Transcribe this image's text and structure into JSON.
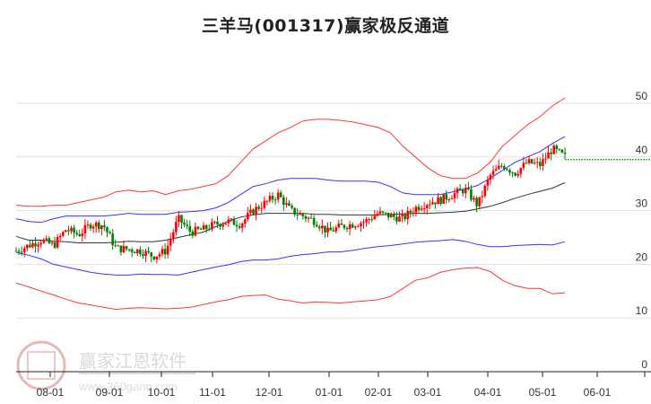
{
  "title": "三羊马(001317)赢家极反通道",
  "watermark": {
    "brand": "赢家江恩软件",
    "url": "www.360gann.com",
    "seal": [
      "江",
      "赢",
      "恩",
      "家"
    ]
  },
  "colors": {
    "up": "#ff0000",
    "down": "#008000",
    "outer_band": "#ff3333",
    "inner_band": "#3333ff",
    "mid_line": "#333333",
    "last_price_line": "#008000",
    "grid": "#e0e0e0"
  },
  "chart_data": {
    "type": "candlestick",
    "title": "三羊马(001317)赢家极反通道",
    "xlabel": "",
    "ylabel": "",
    "ylim": [
      0,
      52
    ],
    "y_ticks": [
      0,
      10,
      20,
      30,
      40,
      50
    ],
    "x_ticks": [
      "08-01",
      "09-01",
      "10-01",
      "11-01",
      "12-01",
      "01-01",
      "02-01",
      "03-01",
      "04-01",
      "05-01",
      "06-01"
    ],
    "grid": true,
    "last_price": 39.5,
    "series": [
      {
        "name": "outer_upper",
        "color": "#ff3333",
        "values": [
          31,
          30.8,
          30.8,
          31,
          31,
          31.5,
          32,
          32.5,
          33.5,
          33.8,
          33.5,
          33.7,
          33,
          33.7,
          34,
          34.5,
          35,
          36.5,
          39,
          41.5,
          43,
          44.5,
          45.5,
          46.7,
          47,
          47,
          46.8,
          46.5,
          46,
          45.5,
          44.5,
          42,
          40,
          38,
          36.5,
          36,
          36,
          37,
          39,
          42,
          44,
          46,
          47.5,
          49.5,
          51
        ]
      },
      {
        "name": "inner_upper",
        "color": "#3333ff",
        "values": [
          28.5,
          28,
          27.8,
          28.5,
          29,
          29,
          29,
          29,
          29.2,
          29.5,
          29.3,
          29.3,
          29.3,
          29.7,
          29.8,
          30,
          30.5,
          31.5,
          33,
          34.5,
          35,
          35.7,
          36,
          36,
          36,
          35.7,
          35.5,
          35.5,
          35.5,
          35.3,
          34.5,
          33.3,
          33,
          33,
          33,
          33.5,
          34,
          34.7,
          36,
          37.5,
          39,
          40,
          41,
          42.5,
          43.8
        ]
      },
      {
        "name": "mid_line",
        "color": "#333333",
        "values": [
          25.2,
          24.5,
          24.5,
          24.3,
          24.2,
          24,
          24,
          24,
          24.1,
          24.3,
          24.2,
          24.2,
          24.5,
          25,
          25.5,
          26,
          27,
          28,
          28.8,
          29.2,
          29.5,
          29.5,
          29.5,
          29.5,
          29.3,
          29.3,
          29.2,
          29.2,
          29.2,
          29.2,
          29.3,
          29.4,
          29.5,
          29.5,
          29.6,
          29.7,
          29.9,
          30.3,
          30.8,
          31.5,
          32.3,
          33,
          33.6,
          34.2,
          35.2
        ]
      },
      {
        "name": "inner_lower",
        "color": "#3333ff",
        "values": [
          22.2,
          21.7,
          21,
          20,
          19.5,
          19,
          18.5,
          18.2,
          18,
          18,
          18.2,
          18.1,
          18.1,
          18,
          18.5,
          19,
          19.5,
          19.9,
          20.5,
          20.8,
          20.8,
          21,
          21.5,
          21.8,
          22,
          22.3,
          22.3,
          22.6,
          23,
          23.3,
          23.5,
          23.8,
          24.1,
          24.3,
          24.4,
          24.6,
          24.3,
          23.7,
          23.3,
          23.3,
          23.5,
          23.6,
          23.7,
          23.6,
          24.2
        ]
      },
      {
        "name": "outer_lower",
        "color": "#ff3333",
        "values": [
          16.5,
          15.8,
          15,
          14.3,
          13.5,
          12.8,
          12.4,
          12,
          11.6,
          11.8,
          11.9,
          11.8,
          11.7,
          11.8,
          12,
          12.5,
          13,
          13.4,
          14,
          14.2,
          14.3,
          13.5,
          13.2,
          12.8,
          13,
          12.9,
          12.8,
          13,
          13.2,
          13.4,
          14,
          15.5,
          17,
          17.5,
          18.5,
          19,
          19.3,
          19.4,
          18.7,
          17,
          16,
          15.5,
          15.5,
          14.5,
          14.7
        ]
      },
      {
        "name": "price_close",
        "color": "#ff0000",
        "values": [
          22.5,
          23.5,
          24.5,
          23.5,
          26.5,
          25.5,
          27.5,
          27.3,
          23,
          22.8,
          22.5,
          21.5,
          22.5,
          28.5,
          26,
          26.5,
          27.5,
          28,
          27.5,
          30,
          31.5,
          33,
          30,
          29,
          28,
          26,
          27,
          27.5,
          28,
          29.5,
          29,
          28.5,
          30.5,
          31.5,
          32,
          33,
          34,
          31,
          36.5,
          38.5,
          37,
          39,
          38.5,
          41.5,
          40
        ]
      }
    ]
  }
}
